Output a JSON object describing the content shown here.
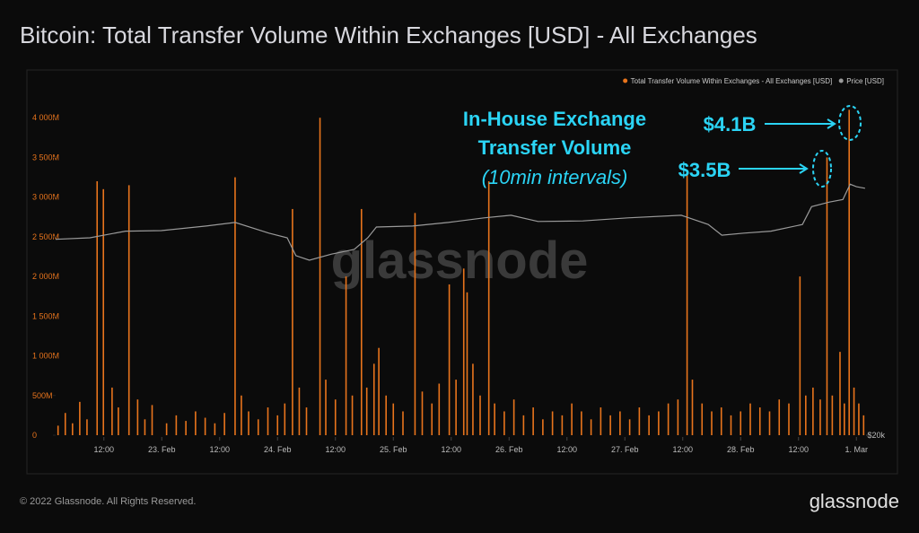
{
  "chart_data": {
    "type": "bar",
    "title": "Bitcoin: Total Transfer Volume Within Exchanges [USD] - All Exchanges",
    "watermark": "glassnode",
    "footer": "© 2022 Glassnode. All Rights Reserved.",
    "brand": "glassnode",
    "annotations": [
      "In-House Exchange",
      "Transfer Volume",
      "(10min intervals)",
      "$4.1B",
      "$3.5B"
    ],
    "xlim": [
      2,
      170
    ],
    "xticks": [
      {
        "value": 12,
        "label": "12:00"
      },
      {
        "value": 24,
        "label": "23. Feb"
      },
      {
        "value": 36,
        "label": "12:00"
      },
      {
        "value": 48,
        "label": "24. Feb"
      },
      {
        "value": 60,
        "label": "12:00"
      },
      {
        "value": 72,
        "label": "25. Feb"
      },
      {
        "value": 84,
        "label": "12:00"
      },
      {
        "value": 96,
        "label": "26. Feb"
      },
      {
        "value": 108,
        "label": "12:00"
      },
      {
        "value": 120,
        "label": "27. Feb"
      },
      {
        "value": 132,
        "label": "12:00"
      },
      {
        "value": 144,
        "label": "28. Feb"
      },
      {
        "value": 156,
        "label": "12:00"
      },
      {
        "value": 168,
        "label": "1. Mar"
      }
    ],
    "ylim": [
      0,
      4500
    ],
    "yticks": [
      0,
      {
        "value": 500,
        "label": "500M"
      },
      {
        "value": 1000,
        "label": "1 000M"
      },
      {
        "value": 1500,
        "label": "1 500M"
      },
      {
        "value": 2000,
        "label": "2 000M"
      },
      {
        "value": 2500,
        "label": "2 500M"
      },
      {
        "value": 3000,
        "label": "3 000M"
      },
      {
        "value": 3500,
        "label": "3 500M"
      },
      {
        "value": 4000,
        "label": "4 000M"
      }
    ],
    "y2lim": [
      20000,
      55000
    ],
    "y2ticks": [
      {
        "value": 20000,
        "label": "$20k"
      }
    ],
    "series": [
      {
        "name": "Total Transfer Volume Within Exchanges - All Exchanges [USD]",
        "color": "#e8741c",
        "type": "bar",
        "x": [
          2.5,
          4,
          5.5,
          7,
          8.5,
          10.6,
          11.9,
          13.7,
          15,
          17.2,
          19,
          20.5,
          22,
          25,
          27,
          29,
          31,
          33,
          35,
          37,
          39.2,
          40.5,
          42,
          44,
          46,
          48,
          49.5,
          51.1,
          52.5,
          54,
          56.8,
          58,
          60,
          62.2,
          63.5,
          65.4,
          66.5,
          68,
          69,
          70.5,
          72,
          74,
          76.5,
          78,
          80,
          81.5,
          83.6,
          85,
          86.6,
          87.3,
          88.5,
          90,
          91.8,
          93,
          95,
          97,
          99,
          101,
          103,
          105,
          107,
          109,
          111,
          113,
          115,
          117,
          119,
          121,
          123,
          125,
          127,
          129,
          131,
          132.9,
          134,
          136,
          138,
          140,
          142,
          144,
          146,
          148,
          150,
          152,
          154,
          156.3,
          157.5,
          159,
          160.5,
          161.9,
          163,
          164.6,
          165.5,
          166.5,
          167.5,
          168.5,
          169.5
        ],
        "values": [
          120,
          280,
          150,
          420,
          200,
          3200,
          3100,
          600,
          350,
          3150,
          450,
          200,
          380,
          150,
          250,
          180,
          300,
          220,
          150,
          280,
          3250,
          500,
          300,
          200,
          350,
          250,
          400,
          2850,
          600,
          350,
          4000,
          700,
          450,
          2000,
          500,
          2850,
          600,
          900,
          1100,
          500,
          400,
          300,
          2800,
          550,
          400,
          650,
          1900,
          700,
          2100,
          1800,
          900,
          500,
          3200,
          400,
          300,
          450,
          250,
          350,
          200,
          300,
          250,
          400,
          300,
          200,
          350,
          250,
          300,
          200,
          350,
          250,
          300,
          400,
          450,
          3300,
          700,
          400,
          300,
          350,
          250,
          300,
          400,
          350,
          300,
          450,
          400,
          2000,
          500,
          600,
          450,
          3500,
          500,
          1050,
          400,
          4100,
          600,
          400,
          250
        ]
      },
      {
        "name": "Price [USD]",
        "color": "#9a9a9a",
        "type": "line",
        "axis": "y2",
        "x": [
          2,
          9.1,
          16.5,
          23.9,
          33.2,
          39.2,
          46.2,
          50,
          51.8,
          54.6,
          59.2,
          63.9,
          66.7,
          68.5,
          76,
          83.4,
          90.8,
          96.4,
          102,
          111.3,
          120.6,
          131.7,
          137.3,
          140.1,
          144.7,
          150.3,
          156.8,
          158.7,
          162.4,
          165.2,
          166.7,
          168,
          169.8
        ],
        "values": [
          39200,
          39350,
          40000,
          40050,
          40500,
          40850,
          39800,
          39350,
          37600,
          37150,
          37750,
          38200,
          39350,
          40400,
          40500,
          40850,
          41300,
          41550,
          40950,
          41000,
          41300,
          41550,
          40650,
          39600,
          39800,
          40000,
          40650,
          42400,
          42850,
          43100,
          44600,
          44350,
          44200
        ]
      }
    ]
  }
}
